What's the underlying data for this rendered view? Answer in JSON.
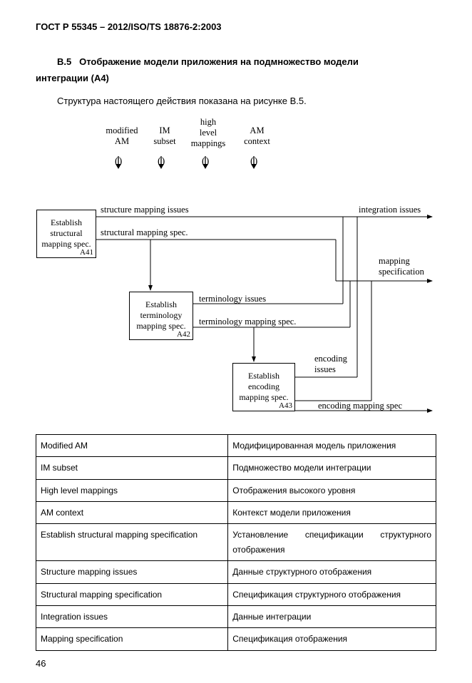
{
  "doc_header": "ГОСТ Р 55345 – 2012/ISO/TS 18876-2:2003",
  "section": {
    "num": "В.5",
    "title_line1": "Отображение модели приложения на подмножество модели",
    "title_line2": "интеграции (А4)"
  },
  "intro": "Структура настоящего действия показана на рисунке В.5.",
  "inputs": {
    "i1": {
      "l1": "modified",
      "l2": "AM"
    },
    "i2": {
      "l1": "IM",
      "l2": "subset"
    },
    "i3": {
      "l1": "high",
      "l2": "level",
      "l3": "mappings"
    },
    "i4": {
      "l1": "AM",
      "l2": "context"
    }
  },
  "nodes": {
    "a41": {
      "l1": "Establish",
      "l2": "structural",
      "l3": "mapping spec.",
      "id": "A41"
    },
    "a42": {
      "l1": "Establish",
      "l2": "terminology",
      "l3": "mapping spec.",
      "id": "A42"
    },
    "a43": {
      "l1": "Establish",
      "l2": "encoding",
      "l3": "mapping spec.",
      "id": "A43"
    }
  },
  "edges": {
    "structure_issues": "structure mapping issues",
    "structural_spec": "structural mapping spec.",
    "integration_issues": "integration issues",
    "mapping_spec_l1": "mapping",
    "mapping_spec_l2": "specification",
    "terminology_issues": "terminology issues",
    "terminology_spec": "terminology mapping spec.",
    "encoding_issues_l1": "encoding",
    "encoding_issues_l2": "issues",
    "encoding_spec": "encoding mapping spec"
  },
  "table": {
    "rows": [
      {
        "en": "Modified AM",
        "ru": "Модифицированная модель приложения"
      },
      {
        "en": "IM subset",
        "ru": "Подмножество модели интеграции"
      },
      {
        "en": "High level mappings",
        "ru": "Отображения высокого уровня"
      },
      {
        "en": "AM context",
        "ru": "Контекст модели приложения"
      },
      {
        "en": "Establish structural mapping specification",
        "ru": "Установление спецификации структурного отображения"
      },
      {
        "en": "Structure mapping issues",
        "ru": "Данные структурного отображения"
      },
      {
        "en": "Structural mapping specification",
        "ru": "Спецификация структурного отображения"
      },
      {
        "en": "Integration issues",
        "ru": "Данные интеграции"
      },
      {
        "en": "Mapping specification",
        "ru": "Спецификация отображения"
      }
    ]
  },
  "page_number": "46"
}
